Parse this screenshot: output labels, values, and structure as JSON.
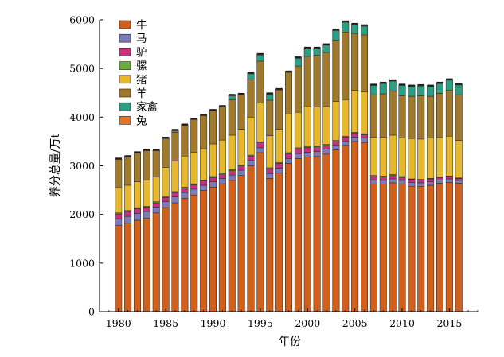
{
  "chart_data": {
    "type": "bar",
    "stacked": true,
    "xlabel": "年份",
    "ylabel": "养分总量/万t",
    "ylim": [
      0,
      6000
    ],
    "yticks": [
      0,
      1000,
      2000,
      3000,
      4000,
      5000,
      6000
    ],
    "xticks": [
      1980,
      1985,
      1990,
      1995,
      2000,
      2005,
      2010,
      2015
    ],
    "legend_position": "top-left",
    "grid": false,
    "categories": [
      1980,
      1981,
      1982,
      1983,
      1984,
      1985,
      1986,
      1987,
      1988,
      1989,
      1990,
      1991,
      1992,
      1993,
      1994,
      1995,
      1996,
      1997,
      1998,
      1999,
      2000,
      2001,
      2002,
      2003,
      2004,
      2005,
      2006,
      2007,
      2008,
      2009,
      2010,
      2011,
      2012,
      2013,
      2014,
      2015,
      2016
    ],
    "series": [
      {
        "name": "牛",
        "color": "#D2601A",
        "values": [
          1770,
          1820,
          1880,
          1920,
          2030,
          2140,
          2240,
          2330,
          2400,
          2490,
          2560,
          2630,
          2700,
          2800,
          3000,
          3270,
          2740,
          2850,
          3050,
          3150,
          3180,
          3190,
          3240,
          3330,
          3420,
          3500,
          3480,
          2620,
          2620,
          2650,
          2620,
          2580,
          2580,
          2600,
          2640,
          2660,
          2640
        ]
      },
      {
        "name": "马",
        "color": "#7B7BB9",
        "values": [
          140,
          140,
          140,
          140,
          120,
          120,
          120,
          120,
          120,
          110,
          110,
          110,
          110,
          110,
          110,
          100,
          100,
          100,
          100,
          100,
          100,
          100,
          100,
          90,
          90,
          90,
          90,
          90,
          80,
          80,
          80,
          80,
          70,
          70,
          70,
          70,
          60
        ]
      },
      {
        "name": "驴",
        "color": "#C7307E",
        "values": [
          100,
          100,
          100,
          90,
          90,
          90,
          90,
          90,
          90,
          90,
          90,
          90,
          90,
          90,
          90,
          100,
          100,
          100,
          100,
          100,
          100,
          100,
          80,
          80,
          80,
          80,
          70,
          70,
          70,
          70,
          60,
          60,
          60,
          60,
          50,
          50,
          40
        ]
      },
      {
        "name": "骡",
        "color": "#6CAC3C",
        "values": [
          20,
          20,
          20,
          20,
          20,
          20,
          20,
          20,
          20,
          20,
          20,
          20,
          20,
          20,
          20,
          20,
          20,
          20,
          20,
          20,
          20,
          20,
          20,
          20,
          20,
          20,
          20,
          20,
          20,
          20,
          20,
          10,
          10,
          10,
          10,
          10,
          10
        ]
      },
      {
        "name": "猪",
        "color": "#E7B82B",
        "values": [
          520,
          520,
          530,
          540,
          510,
          600,
          630,
          640,
          650,
          640,
          670,
          680,
          710,
          730,
          780,
          800,
          660,
          680,
          790,
          730,
          830,
          800,
          780,
          800,
          750,
          860,
          860,
          790,
          800,
          810,
          790,
          830,
          830,
          830,
          810,
          820,
          770
        ]
      },
      {
        "name": "羊",
        "color": "#A0792C",
        "values": [
          580,
          580,
          590,
          600,
          540,
          590,
          590,
          630,
          670,
          680,
          680,
          680,
          730,
          710,
          770,
          860,
          730,
          810,
          860,
          950,
          1020,
          1060,
          1110,
          1260,
          1390,
          1170,
          1170,
          870,
          890,
          910,
          870,
          870,
          890,
          860,
          910,
          940,
          940
        ]
      },
      {
        "name": "家禽",
        "color": "#2C9E83",
        "values": [
          0,
          0,
          0,
          0,
          0,
          0,
          30,
          0,
          0,
          0,
          0,
          0,
          80,
          0,
          120,
          130,
          120,
          0,
          0,
          160,
          160,
          140,
          150,
          200,
          200,
          180,
          180,
          190,
          210,
          200,
          210,
          200,
          200,
          200,
          200,
          210,
          200
        ]
      },
      {
        "name": "兔",
        "color": "#E1762A",
        "values": [
          10,
          10,
          10,
          10,
          10,
          10,
          10,
          10,
          10,
          10,
          10,
          10,
          10,
          10,
          10,
          10,
          10,
          10,
          10,
          10,
          10,
          10,
          10,
          10,
          10,
          10,
          10,
          10,
          10,
          10,
          10,
          10,
          10,
          10,
          10,
          10,
          10
        ]
      }
    ]
  }
}
